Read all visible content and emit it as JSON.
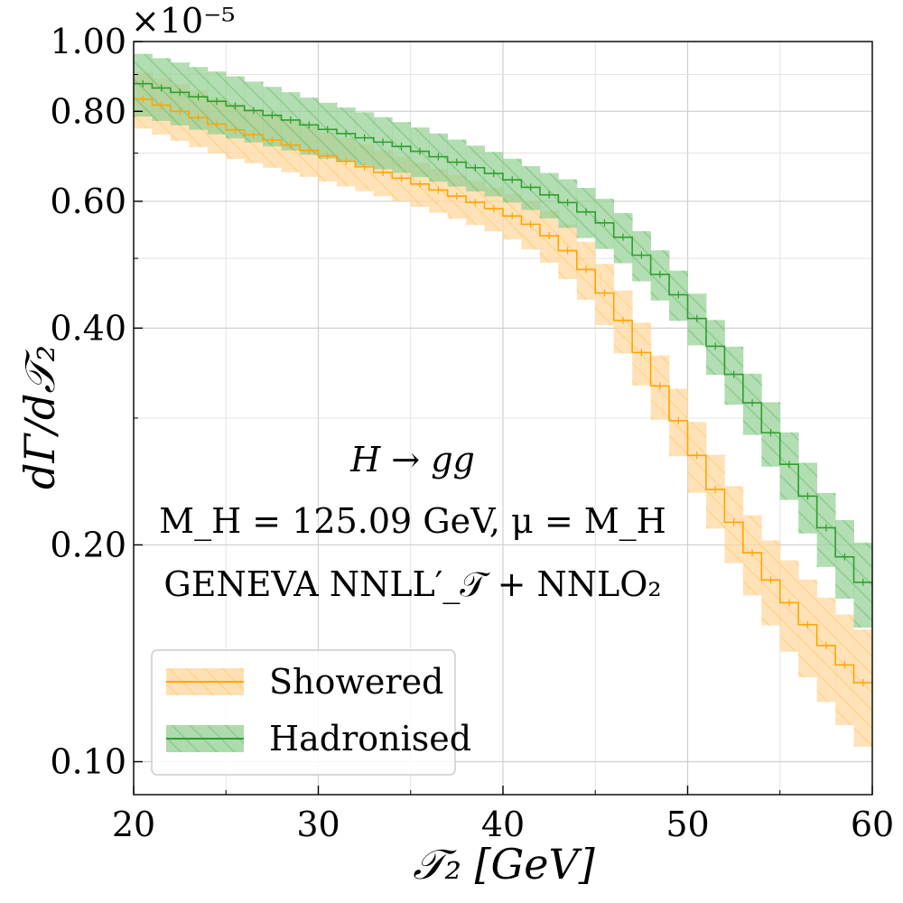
{
  "chart_data": {
    "type": "line",
    "title": "",
    "xlabel": "𝒯₂   [GeV]",
    "ylabel": "dΓ/d𝒯₂",
    "xlim": [
      20,
      60
    ],
    "ylim": [
      0.09,
      1.0
    ],
    "yscale": "log",
    "y_multiplier": "×10⁻⁵",
    "xticks": [
      20,
      30,
      40,
      50,
      60
    ],
    "xtick_labels": [
      "20",
      "30",
      "40",
      "50",
      "60"
    ],
    "yticks": [
      0.1,
      0.2,
      0.4,
      0.6,
      0.8,
      1.0
    ],
    "ytick_labels": [
      "0.10",
      "0.20",
      "0.40",
      "0.60",
      "0.80",
      "1.00"
    ],
    "grid": true,
    "legend_position": "bottom-left",
    "annotations": [
      "H → gg",
      "M_H = 125.09 GeV,  μ = M_H",
      "GENEVA   NNLL′_𝒯 + NNLO₂"
    ],
    "x_bin_edges_start": 20,
    "x_bin_width": 1,
    "series": [
      {
        "name": "Showered",
        "color": "#ffa500",
        "band_color": "#ffd69a",
        "knots_x": [
          20,
          25,
          30,
          35,
          40,
          42,
          44,
          46,
          48,
          50,
          52,
          54,
          56,
          58,
          60
        ],
        "knots_y": [
          0.84,
          0.76,
          0.7,
          0.64,
          0.58,
          0.55,
          0.5,
          0.43,
          0.35,
          0.28,
          0.225,
          0.185,
          0.16,
          0.14,
          0.125
        ],
        "band_rel": [
          0.09,
          0.09,
          0.08,
          0.07,
          0.07,
          0.08,
          0.09,
          0.1,
          0.1,
          0.11,
          0.12,
          0.13,
          0.15,
          0.17,
          0.19
        ]
      },
      {
        "name": "Hadronised",
        "color": "#2ca02c",
        "band_color": "#93cf93",
        "knots_x": [
          20,
          25,
          30,
          35,
          40,
          42,
          44,
          46,
          48,
          50,
          52,
          54,
          56,
          58,
          60
        ],
        "knots_y": [
          0.88,
          0.82,
          0.76,
          0.71,
          0.65,
          0.62,
          0.59,
          0.55,
          0.49,
          0.43,
          0.36,
          0.3,
          0.245,
          0.2,
          0.17
        ],
        "band_rel": [
          0.1,
          0.1,
          0.09,
          0.08,
          0.07,
          0.07,
          0.08,
          0.08,
          0.08,
          0.08,
          0.09,
          0.1,
          0.11,
          0.12,
          0.14
        ]
      }
    ]
  }
}
